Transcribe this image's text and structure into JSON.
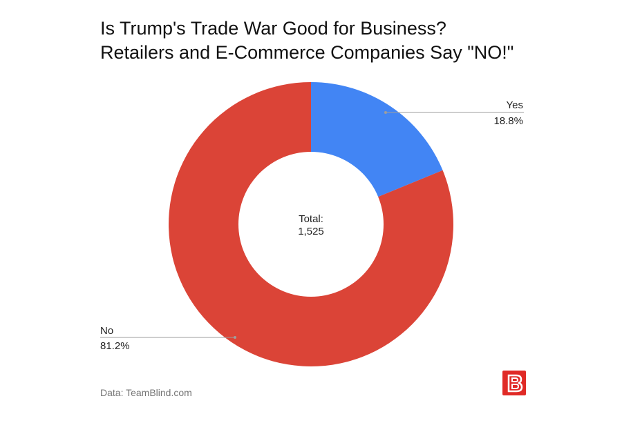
{
  "chart_data": {
    "type": "pie",
    "title_line1": "Is Trump's Trade War Good for Business?",
    "title_line2": "Retailers and E-Commerce Companies Say \"NO!\"",
    "center_label": "Total:",
    "center_value": "1,525",
    "slices": [
      {
        "label": "Yes",
        "value": 18.8,
        "value_label": "18.8%",
        "color": "#4285f4"
      },
      {
        "label": "No",
        "value": 81.2,
        "value_label": "81.2%",
        "color": "#db4437"
      }
    ]
  },
  "footer": {
    "source": "Data: TeamBlind.com"
  },
  "logo": {
    "icon": "blind-logo-icon",
    "color": "#e02a26"
  }
}
